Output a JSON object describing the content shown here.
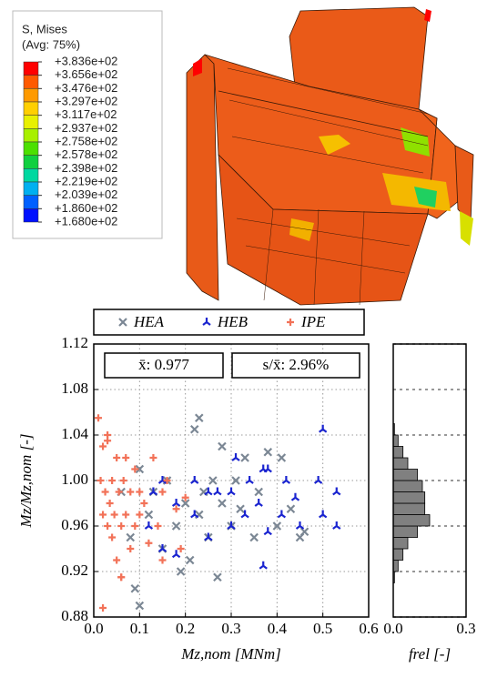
{
  "contour_legend": {
    "title": "S, Mises",
    "subtitle": "(Avg: 75%)",
    "levels": [
      {
        "value": 383.6,
        "label": "+3.836e+02"
      },
      {
        "value": 365.6,
        "label": "+3.656e+02"
      },
      {
        "value": 347.6,
        "label": "+3.476e+02"
      },
      {
        "value": 329.7,
        "label": "+3.297e+02"
      },
      {
        "value": 311.7,
        "label": "+3.117e+02"
      },
      {
        "value": 293.7,
        "label": "+2.937e+02"
      },
      {
        "value": 275.8,
        "label": "+2.758e+02"
      },
      {
        "value": 257.8,
        "label": "+2.578e+02"
      },
      {
        "value": 239.8,
        "label": "+2.398e+02"
      },
      {
        "value": 221.9,
        "label": "+2.219e+02"
      },
      {
        "value": 203.9,
        "label": "+2.039e+02"
      },
      {
        "value": 186.0,
        "label": "+1.860e+02"
      },
      {
        "value": 168.0,
        "label": "+1.680e+02"
      }
    ],
    "colors": [
      "#ff0000",
      "#ff5a00",
      "#ff9a00",
      "#ffcf00",
      "#e8f000",
      "#a8f000",
      "#4ce000",
      "#10d040",
      "#00d8a0",
      "#00b0f0",
      "#0060ff",
      "#0010ff"
    ]
  },
  "chart_data": [
    {
      "type": "scatter",
      "xlabel": "Mz,nom [MNm]",
      "ylabel": "Mz/Mz,nom [-]",
      "xlim": [
        0,
        0.6
      ],
      "ylim": [
        0.88,
        1.12
      ],
      "xticks": [
        {
          "value": 0,
          "label": "0.0"
        },
        0.1,
        0.2,
        0.3,
        0.4,
        0.5,
        0.6
      ],
      "yticks": [
        0.88,
        0.92,
        0.96,
        {
          "value": 1,
          "label": "1.00"
        },
        1.04,
        1.08,
        1.12
      ],
      "grid": true,
      "annotations": [
        "x̄: 0.977",
        "s/x̄: 2.96%"
      ],
      "series": [
        {
          "name": "HEA",
          "color": "#7b8794",
          "marker": "x",
          "x": [
            0.06,
            0.08,
            0.1,
            0.1,
            0.12,
            0.13,
            0.15,
            0.16,
            0.18,
            0.2,
            0.21,
            0.22,
            0.23,
            0.23,
            0.25,
            0.26,
            0.27,
            0.28,
            0.28,
            0.3,
            0.31,
            0.32,
            0.35,
            0.36,
            0.38,
            0.4,
            0.41,
            0.43,
            0.45,
            0.46,
            0.24,
            0.19,
            0.09,
            0.33
          ],
          "values": [
            0.99,
            0.95,
            0.89,
            1.01,
            0.97,
            0.99,
            0.94,
            1.0,
            0.96,
            0.98,
            0.93,
            1.045,
            1.055,
            0.97,
            0.95,
            1.0,
            0.915,
            0.98,
            1.03,
            0.96,
            1.0,
            0.975,
            0.95,
            0.99,
            1.025,
            0.96,
            1.02,
            0.975,
            0.95,
            0.955,
            0.99,
            0.92,
            0.905,
            1.02
          ]
        },
        {
          "name": "HEB",
          "color": "#1a24d0",
          "marker": "tri",
          "x": [
            0.12,
            0.13,
            0.15,
            0.15,
            0.18,
            0.18,
            0.22,
            0.22,
            0.25,
            0.25,
            0.3,
            0.3,
            0.31,
            0.33,
            0.34,
            0.36,
            0.37,
            0.38,
            0.38,
            0.41,
            0.42,
            0.44,
            0.45,
            0.5,
            0.5,
            0.53,
            0.53,
            0.49,
            0.37,
            0.27
          ],
          "values": [
            0.96,
            0.99,
            0.94,
            1.0,
            0.98,
            0.935,
            0.97,
            1.0,
            0.95,
            0.99,
            0.99,
            0.96,
            1.02,
            0.97,
            1.0,
            0.98,
            0.925,
            0.955,
            1.01,
            0.97,
            1.0,
            0.985,
            0.96,
            0.97,
            1.045,
            0.96,
            0.99,
            1.0,
            1.01,
            0.99
          ]
        },
        {
          "name": "IPE",
          "color": "#f27258",
          "marker": "plus",
          "x": [
            0.01,
            0.015,
            0.02,
            0.02,
            0.025,
            0.03,
            0.03,
            0.035,
            0.04,
            0.04,
            0.045,
            0.05,
            0.05,
            0.055,
            0.06,
            0.06,
            0.065,
            0.07,
            0.07,
            0.08,
            0.08,
            0.09,
            0.09,
            0.1,
            0.1,
            0.11,
            0.12,
            0.13,
            0.14,
            0.15,
            0.15,
            0.16,
            0.18,
            0.19,
            0.2,
            0.02,
            0.06,
            0.03
          ],
          "values": [
            1.055,
            1.0,
            0.97,
            1.03,
            0.99,
            0.96,
            1.035,
            0.98,
            1.0,
            0.95,
            0.97,
            1.02,
            0.93,
            0.99,
            0.96,
            0.915,
            1.0,
            0.97,
            1.02,
            0.94,
            0.99,
            0.96,
            1.01,
            0.97,
            0.99,
            0.98,
            0.945,
            1.02,
            0.96,
            0.99,
            0.93,
            1.0,
            0.975,
            0.94,
            0.985,
            0.888,
            0.915,
            1.04
          ]
        }
      ]
    },
    {
      "type": "histogram",
      "orientation": "horizontal",
      "xlabel": "frel [-]",
      "color": "#808080",
      "xlim": [
        0,
        0.3
      ],
      "xticks": [
        {
          "value": 0,
          "label": "0.0"
        },
        0.3
      ],
      "ylim": [
        0.88,
        1.12
      ],
      "yticks": [
        0.88,
        0.92,
        0.96,
        1,
        1.04,
        1.08,
        1.12
      ],
      "bins": [
        0.91,
        0.92,
        0.93,
        0.94,
        0.95,
        0.96,
        0.97,
        0.98,
        0.99,
        1.0,
        1.01,
        1.02,
        1.03,
        1.04,
        1.05
      ],
      "values": [
        0.005,
        0.02,
        0.04,
        0.06,
        0.1,
        0.15,
        0.13,
        0.13,
        0.12,
        0.1,
        0.06,
        0.04,
        0.02,
        0.005
      ]
    }
  ]
}
